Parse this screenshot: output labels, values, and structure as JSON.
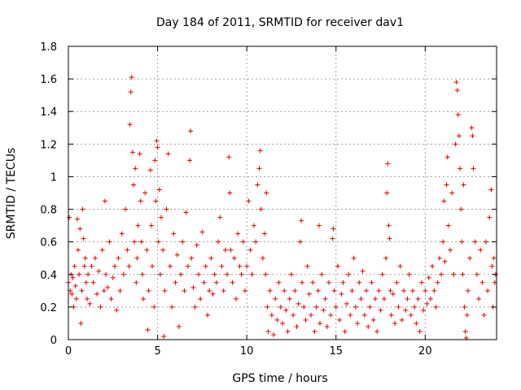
{
  "chart_data": {
    "type": "scatter",
    "title": "Day 184 of 2011, SRMTID for receiver dav1",
    "xlabel": "GPS time / hours",
    "ylabel": "SRMTID / TECUs",
    "xlim": [
      0,
      24
    ],
    "ylim": [
      0,
      1.8
    ],
    "xticks": [
      0,
      5,
      10,
      15,
      20
    ],
    "xtick_labels": [
      "0",
      "5",
      "10",
      "15",
      "20"
    ],
    "yticks": [
      0,
      0.2,
      0.4,
      0.6,
      0.8,
      1,
      1.2,
      1.4,
      1.6,
      1.8
    ],
    "ytick_labels": [
      "0",
      "0.2",
      "0.4",
      "0.6",
      "0.8",
      "1",
      "1.2",
      "1.4",
      "1.6",
      "1.8"
    ],
    "grid": true,
    "marker": "plus",
    "color": "#e00000",
    "series": [
      {
        "name": "dav1",
        "points": [
          [
            0.0,
            0.35
          ],
          [
            0.05,
            0.75
          ],
          [
            0.1,
            0.3
          ],
          [
            0.15,
            0.4
          ],
          [
            0.2,
            0.28
          ],
          [
            0.25,
            0.38
          ],
          [
            0.3,
            0.2
          ],
          [
            0.35,
            0.45
          ],
          [
            0.4,
            0.33
          ],
          [
            0.45,
            0.25
          ],
          [
            0.5,
            0.74
          ],
          [
            0.55,
            0.55
          ],
          [
            0.6,
            0.4
          ],
          [
            0.65,
            0.68
          ],
          [
            0.7,
            0.1
          ],
          [
            0.75,
            0.3
          ],
          [
            0.8,
            0.8
          ],
          [
            0.85,
            0.62
          ],
          [
            0.9,
            0.45
          ],
          [
            0.95,
            0.5
          ],
          [
            1.0,
            0.35
          ],
          [
            1.05,
            0.25
          ],
          [
            1.1,
            0.4
          ],
          [
            1.2,
            0.22
          ],
          [
            1.3,
            0.45
          ],
          [
            1.4,
            0.35
          ],
          [
            1.5,
            0.5
          ],
          [
            1.6,
            0.28
          ],
          [
            1.7,
            0.42
          ],
          [
            1.8,
            0.2
          ],
          [
            1.9,
            0.55
          ],
          [
            2.0,
            0.3
          ],
          [
            2.05,
            0.85
          ],
          [
            2.1,
            0.4
          ],
          [
            2.2,
            0.32
          ],
          [
            2.3,
            0.6
          ],
          [
            2.4,
            0.25
          ],
          [
            2.5,
            0.38
          ],
          [
            2.6,
            0.45
          ],
          [
            2.7,
            0.18
          ],
          [
            2.8,
            0.5
          ],
          [
            2.9,
            0.3
          ],
          [
            3.0,
            0.65
          ],
          [
            3.1,
            0.4
          ],
          [
            3.2,
            0.8
          ],
          [
            3.3,
            0.55
          ],
          [
            3.4,
            0.45
          ],
          [
            3.45,
            1.32
          ],
          [
            3.5,
            1.52
          ],
          [
            3.55,
            1.61
          ],
          [
            3.6,
            1.15
          ],
          [
            3.65,
            0.95
          ],
          [
            3.7,
            0.6
          ],
          [
            3.75,
            1.05
          ],
          [
            3.8,
            0.35
          ],
          [
            3.85,
            0.5
          ],
          [
            3.9,
            0.7
          ],
          [
            4.0,
            1.14
          ],
          [
            4.05,
            0.85
          ],
          [
            4.1,
            0.6
          ],
          [
            4.15,
            0.4
          ],
          [
            4.2,
            0.25
          ],
          [
            4.3,
            0.9
          ],
          [
            4.4,
            0.55
          ],
          [
            4.45,
            0.06
          ],
          [
            4.5,
            0.3
          ],
          [
            4.6,
            1.04
          ],
          [
            4.65,
            0.7
          ],
          [
            4.7,
            0.45
          ],
          [
            4.8,
            0.2
          ],
          [
            4.85,
            1.1
          ],
          [
            4.9,
            0.85
          ],
          [
            4.95,
            1.22
          ],
          [
            5.0,
            1.18
          ],
          [
            5.05,
            0.6
          ],
          [
            5.1,
            0.92
          ],
          [
            5.15,
            0.4
          ],
          [
            5.2,
            0.75
          ],
          [
            5.3,
            0.55
          ],
          [
            5.35,
            0.02
          ],
          [
            5.4,
            0.3
          ],
          [
            5.5,
            0.8
          ],
          [
            5.6,
            1.14
          ],
          [
            5.7,
            0.45
          ],
          [
            5.8,
            0.2
          ],
          [
            5.9,
            0.65
          ],
          [
            6.0,
            0.35
          ],
          [
            6.1,
            0.52
          ],
          [
            6.2,
            0.08
          ],
          [
            6.3,
            0.4
          ],
          [
            6.4,
            0.6
          ],
          [
            6.5,
            0.3
          ],
          [
            6.6,
            0.78
          ],
          [
            6.7,
            0.45
          ],
          [
            6.8,
            1.1
          ],
          [
            6.85,
            1.28
          ],
          [
            6.9,
            0.5
          ],
          [
            7.0,
            0.32
          ],
          [
            7.1,
            0.2
          ],
          [
            7.2,
            0.58
          ],
          [
            7.3,
            0.4
          ],
          [
            7.4,
            0.25
          ],
          [
            7.5,
            0.66
          ],
          [
            7.6,
            0.35
          ],
          [
            7.7,
            0.45
          ],
          [
            7.8,
            0.15
          ],
          [
            7.9,
            0.3
          ],
          [
            8.0,
            0.5
          ],
          [
            8.1,
            0.28
          ],
          [
            8.2,
            0.4
          ],
          [
            8.3,
            0.35
          ],
          [
            8.4,
            0.6
          ],
          [
            8.5,
            0.75
          ],
          [
            8.6,
            0.45
          ],
          [
            8.7,
            0.3
          ],
          [
            8.8,
            0.55
          ],
          [
            8.9,
            0.4
          ],
          [
            9.0,
            1.12
          ],
          [
            9.05,
            0.9
          ],
          [
            9.1,
            0.55
          ],
          [
            9.2,
            0.35
          ],
          [
            9.3,
            0.5
          ],
          [
            9.4,
            0.25
          ],
          [
            9.5,
            0.65
          ],
          [
            9.6,
            0.45
          ],
          [
            9.7,
            0.4
          ],
          [
            9.8,
            0.6
          ],
          [
            9.9,
            0.3
          ],
          [
            10.0,
            0.45
          ],
          [
            10.1,
            0.85
          ],
          [
            10.2,
            0.55
          ],
          [
            10.3,
            0.4
          ],
          [
            10.4,
            0.7
          ],
          [
            10.5,
            0.6
          ],
          [
            10.6,
            0.95
          ],
          [
            10.7,
            1.05
          ],
          [
            10.75,
            1.16
          ],
          [
            10.8,
            0.8
          ],
          [
            10.9,
            0.5
          ],
          [
            11.0,
            0.65
          ],
          [
            11.05,
            0.4
          ],
          [
            11.1,
            0.9
          ],
          [
            11.15,
            0.2
          ],
          [
            11.2,
            0.05
          ],
          [
            11.3,
            0.3
          ],
          [
            11.4,
            0.15
          ],
          [
            11.5,
            0.03
          ],
          [
            11.6,
            0.25
          ],
          [
            11.7,
            0.12
          ],
          [
            11.8,
            0.35
          ],
          [
            11.9,
            0.2
          ],
          [
            12.0,
            0.1
          ],
          [
            12.1,
            0.3
          ],
          [
            12.2,
            0.18
          ],
          [
            12.3,
            0.05
          ],
          [
            12.4,
            0.25
          ],
          [
            12.5,
            0.4
          ],
          [
            12.6,
            0.15
          ],
          [
            12.7,
            0.3
          ],
          [
            12.8,
            0.08
          ],
          [
            12.9,
            0.22
          ],
          [
            13.0,
            0.6
          ],
          [
            13.05,
            0.73
          ],
          [
            13.1,
            0.35
          ],
          [
            13.2,
            0.2
          ],
          [
            13.3,
            0.12
          ],
          [
            13.4,
            0.45
          ],
          [
            13.5,
            0.28
          ],
          [
            13.6,
            0.15
          ],
          [
            13.7,
            0.35
          ],
          [
            13.8,
            0.05
          ],
          [
            13.9,
            0.2
          ],
          [
            14.0,
            0.3
          ],
          [
            14.05,
            0.7
          ],
          [
            14.1,
            0.1
          ],
          [
            14.2,
            0.4
          ],
          [
            14.3,
            0.18
          ],
          [
            14.4,
            0.25
          ],
          [
            14.5,
            0.08
          ],
          [
            14.6,
            0.35
          ],
          [
            14.7,
            0.15
          ],
          [
            14.8,
            0.62
          ],
          [
            14.85,
            0.68
          ],
          [
            14.9,
            0.3
          ],
          [
            15.0,
            0.2
          ],
          [
            15.1,
            0.45
          ],
          [
            15.2,
            0.12
          ],
          [
            15.3,
            0.28
          ],
          [
            15.4,
            0.35
          ],
          [
            15.5,
            0.05
          ],
          [
            15.6,
            0.22
          ],
          [
            15.7,
            0.4
          ],
          [
            15.8,
            0.15
          ],
          [
            15.9,
            0.3
          ],
          [
            16.0,
            0.5
          ],
          [
            16.1,
            0.2
          ],
          [
            16.2,
            0.1
          ],
          [
            16.3,
            0.35
          ],
          [
            16.4,
            0.25
          ],
          [
            16.5,
            0.42
          ],
          [
            16.6,
            0.15
          ],
          [
            16.7,
            0.3
          ],
          [
            16.8,
            0.08
          ],
          [
            16.9,
            0.2
          ],
          [
            17.0,
            0.35
          ],
          [
            17.1,
            0.12
          ],
          [
            17.2,
            0.25
          ],
          [
            17.3,
            0.05
          ],
          [
            17.4,
            0.3
          ],
          [
            17.5,
            0.18
          ],
          [
            17.6,
            0.4
          ],
          [
            17.7,
            0.25
          ],
          [
            17.8,
            0.5
          ],
          [
            17.85,
            0.9
          ],
          [
            17.9,
            1.08
          ],
          [
            17.95,
            0.7
          ],
          [
            18.0,
            0.62
          ],
          [
            18.05,
            0.3
          ],
          [
            18.1,
            0.15
          ],
          [
            18.2,
            0.28
          ],
          [
            18.3,
            0.1
          ],
          [
            18.4,
            0.35
          ],
          [
            18.5,
            0.2
          ],
          [
            18.6,
            0.45
          ],
          [
            18.7,
            0.12
          ],
          [
            18.8,
            0.3
          ],
          [
            18.9,
            0.18
          ],
          [
            19.0,
            0.25
          ],
          [
            19.1,
            0.4
          ],
          [
            19.2,
            0.15
          ],
          [
            19.3,
            0.3
          ],
          [
            19.4,
            0.2
          ],
          [
            19.5,
            0.1
          ],
          [
            19.6,
            0.25
          ],
          [
            19.7,
            0.05
          ],
          [
            19.8,
            0.35
          ],
          [
            19.9,
            0.18
          ],
          [
            20.0,
            0.3
          ],
          [
            20.1,
            0.22
          ],
          [
            20.2,
            0.38
          ],
          [
            20.3,
            0.25
          ],
          [
            20.4,
            0.45
          ],
          [
            20.5,
            0.3
          ],
          [
            20.6,
            0.2
          ],
          [
            20.7,
            0.35
          ],
          [
            20.8,
            0.5
          ],
          [
            20.9,
            0.4
          ],
          [
            21.0,
            0.6
          ],
          [
            21.05,
            0.85
          ],
          [
            21.1,
            0.48
          ],
          [
            21.2,
            0.95
          ],
          [
            21.25,
            1.12
          ],
          [
            21.3,
            0.7
          ],
          [
            21.4,
            0.55
          ],
          [
            21.5,
            0.9
          ],
          [
            21.6,
            0.4
          ],
          [
            21.7,
            1.2
          ],
          [
            21.75,
            1.58
          ],
          [
            21.8,
            1.53
          ],
          [
            21.85,
            1.38
          ],
          [
            21.9,
            1.25
          ],
          [
            21.95,
            1.05
          ],
          [
            22.0,
            0.8
          ],
          [
            22.05,
            0.6
          ],
          [
            22.1,
            0.4
          ],
          [
            22.15,
            0.95
          ],
          [
            22.2,
            0.2
          ],
          [
            22.25,
            0.05
          ],
          [
            22.3,
            0.01
          ],
          [
            22.35,
            0.15
          ],
          [
            22.4,
            0.3
          ],
          [
            22.5,
            0.5
          ],
          [
            22.6,
            1.3
          ],
          [
            22.65,
            1.25
          ],
          [
            22.7,
            1.05
          ],
          [
            22.8,
            0.6
          ],
          [
            22.9,
            0.4
          ],
          [
            23.0,
            0.25
          ],
          [
            23.1,
            0.55
          ],
          [
            23.2,
            0.35
          ],
          [
            23.3,
            0.15
          ],
          [
            23.4,
            0.6
          ],
          [
            23.5,
            0.3
          ],
          [
            23.6,
            0.75
          ],
          [
            23.7,
            0.92
          ],
          [
            23.75,
            0.45
          ],
          [
            23.8,
            0.2
          ],
          [
            23.85,
            0.5
          ],
          [
            23.9,
            0.35
          ],
          [
            23.95,
            0.4
          ]
        ]
      }
    ]
  }
}
